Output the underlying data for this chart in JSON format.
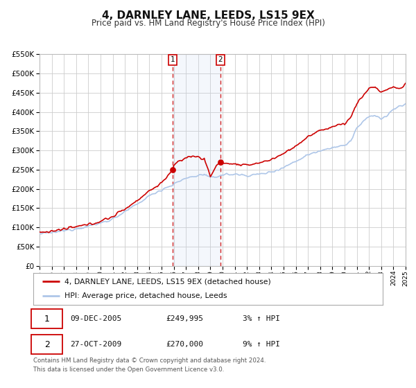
{
  "title": "4, DARNLEY LANE, LEEDS, LS15 9EX",
  "subtitle": "Price paid vs. HM Land Registry's House Price Index (HPI)",
  "title_fontsize": 11,
  "subtitle_fontsize": 8.5,
  "background_color": "#ffffff",
  "plot_bg_color": "#ffffff",
  "grid_color": "#cccccc",
  "ylim": [
    0,
    550000
  ],
  "yticks": [
    0,
    50000,
    100000,
    150000,
    200000,
    250000,
    300000,
    350000,
    400000,
    450000,
    500000,
    550000
  ],
  "xtick_start": 1995,
  "xtick_end": 2025,
  "hpi_color": "#aec6e8",
  "price_color": "#cc0000",
  "marker_color": "#cc0000",
  "sale1_x": 2005.92,
  "sale1_y": 249995,
  "sale2_x": 2009.82,
  "sale2_y": 270000,
  "vshade_x1": 2005.92,
  "vshade_x2": 2009.82,
  "legend_label1": "4, DARNLEY LANE, LEEDS, LS15 9EX (detached house)",
  "legend_label2": "HPI: Average price, detached house, Leeds",
  "sale1_date": "09-DEC-2005",
  "sale1_price": "£249,995",
  "sale1_hpi": "3% ↑ HPI",
  "sale2_date": "27-OCT-2009",
  "sale2_price": "£270,000",
  "sale2_hpi": "9% ↑ HPI",
  "footer1": "Contains HM Land Registry data © Crown copyright and database right 2024.",
  "footer2": "This data is licensed under the Open Government Licence v3.0."
}
